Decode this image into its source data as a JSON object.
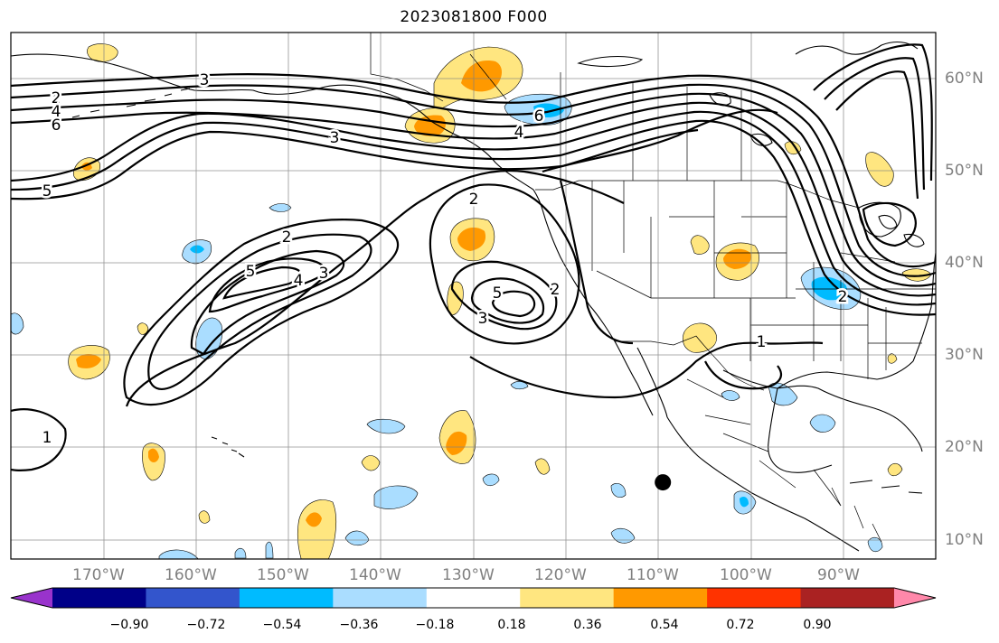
{
  "title": "2023081800 F000",
  "map": {
    "projection": "equirectangular",
    "lon_range": [
      -180,
      -80
    ],
    "lat_range": [
      8,
      65
    ],
    "gridlines": true,
    "lon_labels": [
      "170°W",
      "160°W",
      "150°W",
      "140°W",
      "130°W",
      "120°W",
      "110°W",
      "100°W",
      "90°W"
    ],
    "lat_labels": [
      "60°N",
      "50°N",
      "40°N",
      "30°N",
      "20°N",
      "10°N"
    ],
    "contour_labels": [
      "2",
      "4",
      "6",
      "3",
      "3",
      "5",
      "2",
      "2",
      "5",
      "4",
      "3",
      "5",
      "3",
      "2",
      "6",
      "4",
      "2",
      "1",
      "1"
    ],
    "marker": {
      "type": "filled-circle",
      "lon": -109.5,
      "lat": 16.3,
      "color": "#000000"
    }
  },
  "colorbar": {
    "extend": "both",
    "colors": [
      "#9933cc",
      "#000088",
      "#3355cc",
      "#00bbff",
      "#aaddff",
      "#ffffff",
      "#ffe680",
      "#ff9900",
      "#ff3300",
      "#aa2222",
      "#ff88aa"
    ],
    "tick_labels": [
      "−0.90",
      "−0.72",
      "−0.54",
      "−0.36",
      "−0.18",
      "0.18",
      "0.36",
      "0.54",
      "0.72",
      "0.90"
    ]
  }
}
